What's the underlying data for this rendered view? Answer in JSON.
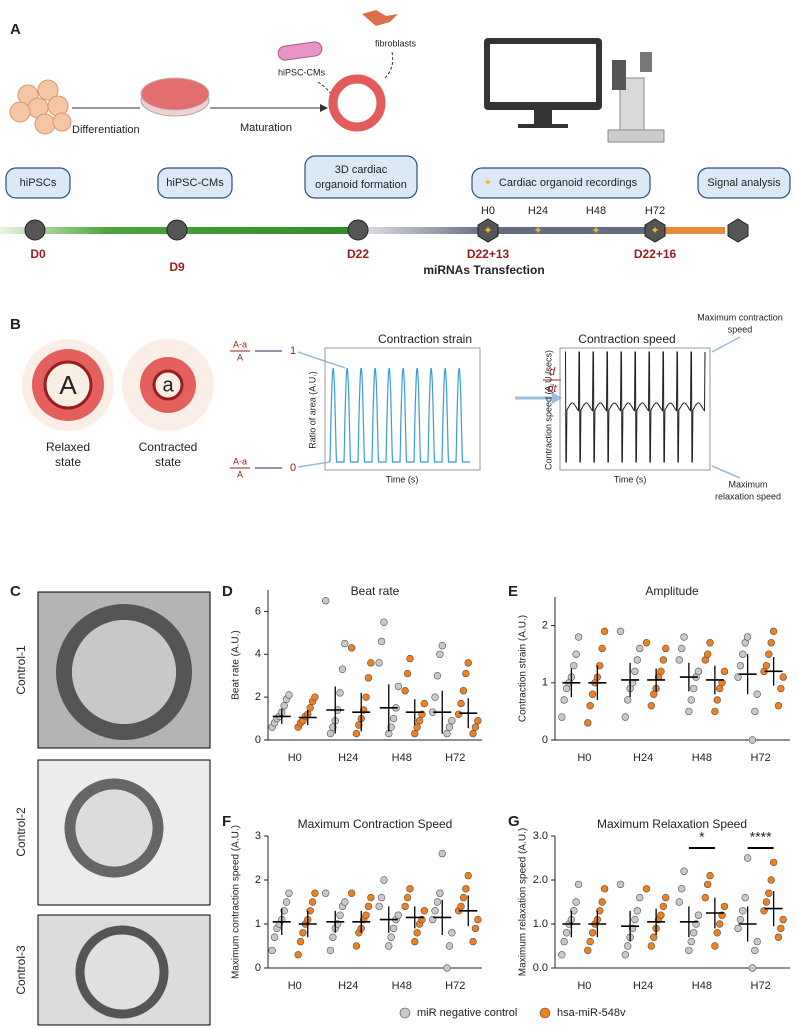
{
  "panel_a": {
    "label": "A",
    "differentiation": "Differentiation",
    "maturation": "Maturation",
    "hipsc_cms_cell": "hiPSC-CMs",
    "fibroblasts": "fibroblasts",
    "boxes": [
      "hiPSCs",
      "hiPSC-CMs",
      [
        "3D cardiac",
        "organoid formation"
      ],
      "Cardiac organoid recordings",
      "Signal analysis"
    ],
    "hours": [
      "H0",
      "H24",
      "H48",
      "H72"
    ],
    "days": [
      "D0",
      "D9",
      "D22",
      "D22+13",
      "D22+16"
    ],
    "transfection": "miRNAs Transfection"
  },
  "panel_b": {
    "label": "B",
    "relaxed_letter": "A",
    "contracted_letter": "a",
    "relaxed": [
      "Relaxed",
      "state"
    ],
    "contracted": [
      "Contracted",
      "state"
    ],
    "fraction_top": [
      "A-a",
      "A"
    ],
    "fraction_bottom": [
      "A-a",
      "A"
    ],
    "one": "1",
    "zero": "0",
    "derivative": [
      "d",
      "dt"
    ],
    "strain_title": "Contraction strain",
    "strain_ylabel": "Ratio of area (A.U.)",
    "strain_xlabel": "Time (s)",
    "speed_title": "Contraction speed",
    "speed_ylabel": "Contraction speed (A.U./secs)",
    "speed_xlabel": "Time (s)",
    "max_contraction": [
      "Maximum contraction",
      "speed"
    ],
    "max_relaxation": [
      "Maximum",
      "relaxation speed"
    ]
  },
  "panel_c": {
    "label": "C",
    "images": [
      "Control-1",
      "Control-2",
      "Control-3"
    ]
  },
  "chart_data": [
    {
      "type": "scatter",
      "panel_label": "D",
      "title": "Beat rate",
      "y_label": "Beat rate (A.U.)",
      "categories": [
        "H0",
        "H24",
        "H48",
        "H72"
      ],
      "ylim": [
        0,
        7
      ],
      "yticks": [
        0,
        2,
        4,
        6
      ],
      "series": [
        {
          "name": "miR negative control",
          "color": "#c8c8c8",
          "values": [
            [
              0.6,
              0.8,
              1.0,
              1.1,
              1.3,
              1.6,
              1.9,
              2.1
            ],
            [
              0.3,
              0.6,
              0.9,
              1.4,
              2.2,
              3.3,
              4.5,
              6.5
            ],
            [
              0.3,
              0.6,
              1.0,
              1.5,
              2.5,
              3.6,
              4.6,
              5.5
            ],
            [
              0.3,
              0.6,
              0.9,
              1.3,
              2.0,
              3.0,
              4.0,
              4.4
            ]
          ],
          "mean": [
            1.1,
            1.4,
            1.5,
            1.3
          ],
          "sd": [
            0.35,
            1.1,
            1.1,
            1.0
          ]
        },
        {
          "name": "hsa-miR-548v",
          "color": "#f07f1e",
          "values": [
            [
              0.6,
              0.8,
              0.9,
              1.1,
              1.2,
              1.5,
              1.8,
              2.0
            ],
            [
              0.3,
              0.7,
              1.0,
              1.4,
              2.0,
              2.9,
              3.6,
              4.3
            ],
            [
              0.3,
              0.6,
              0.9,
              1.2,
              1.7,
              2.3,
              3.1,
              3.8
            ],
            [
              0.3,
              0.6,
              0.9,
              1.2,
              1.7,
              2.3,
              3.1,
              3.6
            ]
          ],
          "mean": [
            1.05,
            1.3,
            1.3,
            1.25
          ],
          "sd": [
            0.35,
            0.9,
            0.6,
            0.7
          ]
        }
      ]
    },
    {
      "type": "scatter",
      "panel_label": "E",
      "title": "Amplitude",
      "y_label": "Contraction strain (A.U.)",
      "categories": [
        "H0",
        "H24",
        "H48",
        "H72"
      ],
      "ylim": [
        0,
        2.5
      ],
      "yticks": [
        0,
        1,
        2
      ],
      "series": [
        {
          "name": "miR negative control",
          "color": "#c8c8c8",
          "values": [
            [
              0.4,
              0.7,
              0.9,
              1.0,
              1.1,
              1.3,
              1.5,
              1.8
            ],
            [
              0.4,
              0.7,
              0.9,
              1.0,
              1.2,
              1.4,
              1.6,
              1.9
            ],
            [
              0.5,
              0.7,
              0.9,
              1.1,
              1.2,
              1.4,
              1.6,
              1.8
            ],
            [
              0.0,
              0.5,
              0.8,
              1.1,
              1.3,
              1.5,
              1.7,
              1.8
            ]
          ],
          "mean": [
            1.0,
            1.05,
            1.1,
            1.15
          ],
          "sd": [
            0.25,
            0.3,
            0.25,
            0.35
          ]
        },
        {
          "name": "hsa-miR-548v",
          "color": "#f07f1e",
          "values": [
            [
              0.3,
              0.6,
              0.8,
              1.0,
              1.1,
              1.3,
              1.6,
              1.9
            ],
            [
              0.6,
              0.8,
              0.9,
              1.1,
              1.2,
              1.4,
              1.6,
              1.7
            ],
            [
              0.5,
              0.7,
              0.9,
              1.0,
              1.2,
              1.4,
              1.5,
              1.7
            ],
            [
              0.6,
              0.9,
              1.1,
              1.2,
              1.3,
              1.5,
              1.7,
              1.9
            ]
          ],
          "mean": [
            1.0,
            1.05,
            1.05,
            1.2
          ],
          "sd": [
            0.3,
            0.2,
            0.25,
            0.25
          ]
        }
      ]
    },
    {
      "type": "scatter",
      "panel_label": "F",
      "title": "Maximum Contraction Speed",
      "y_label": "Maximum contraction speed (A.U.)",
      "categories": [
        "H0",
        "H24",
        "H48",
        "H72"
      ],
      "ylim": [
        0,
        3
      ],
      "yticks": [
        0,
        1,
        2,
        3
      ],
      "series": [
        {
          "name": "miR negative control",
          "color": "#c8c8c8",
          "values": [
            [
              0.4,
              0.7,
              0.9,
              1.0,
              1.1,
              1.3,
              1.5,
              1.7
            ],
            [
              0.4,
              0.7,
              0.9,
              1.0,
              1.2,
              1.4,
              1.5,
              1.7
            ],
            [
              0.5,
              0.7,
              0.9,
              1.1,
              1.2,
              1.4,
              1.6,
              2.0
            ],
            [
              0.0,
              0.5,
              0.8,
              1.1,
              1.3,
              1.5,
              1.7,
              2.6
            ]
          ],
          "mean": [
            1.05,
            1.05,
            1.1,
            1.15
          ],
          "sd": [
            0.3,
            0.25,
            0.3,
            0.4
          ]
        },
        {
          "name": "hsa-miR-548v",
          "color": "#f07f1e",
          "values": [
            [
              0.3,
              0.6,
              0.8,
              1.0,
              1.1,
              1.3,
              1.5,
              1.7
            ],
            [
              0.5,
              0.8,
              0.9,
              1.1,
              1.2,
              1.4,
              1.6,
              1.7
            ],
            [
              0.6,
              0.8,
              1.0,
              1.1,
              1.3,
              1.4,
              1.6,
              1.8
            ],
            [
              0.6,
              0.9,
              1.1,
              1.3,
              1.4,
              1.6,
              1.8,
              2.1
            ]
          ],
          "mean": [
            1.0,
            1.05,
            1.15,
            1.3
          ],
          "sd": [
            0.3,
            0.25,
            0.25,
            0.35
          ]
        }
      ]
    },
    {
      "type": "scatter",
      "panel_label": "G",
      "title": "Maximum Relaxation Speed",
      "y_label": "Maximum relaxation speed (A.U.)",
      "categories": [
        "H0",
        "H24",
        "H48",
        "H72"
      ],
      "ylim": [
        0,
        3
      ],
      "yticks": [
        {
          "value": 0,
          "label": "0.0"
        },
        {
          "value": 1,
          "label": "1.0"
        },
        {
          "value": 2,
          "label": "2.0"
        },
        {
          "value": 3,
          "label": "3.0"
        }
      ],
      "significance": [
        null,
        null,
        "*",
        "****"
      ],
      "series": [
        {
          "name": "miR negative control",
          "color": "#c8c8c8",
          "values": [
            [
              0.3,
              0.6,
              0.8,
              1.0,
              1.1,
              1.3,
              1.5,
              1.9
            ],
            [
              0.3,
              0.5,
              0.7,
              0.9,
              1.1,
              1.3,
              1.6,
              1.9
            ],
            [
              0.4,
              0.6,
              0.8,
              1.0,
              1.2,
              1.5,
              1.8,
              2.2
            ],
            [
              0.0,
              0.4,
              0.6,
              0.9,
              1.1,
              1.3,
              1.6,
              2.5
            ]
          ],
          "mean": [
            1.0,
            0.95,
            1.05,
            1.0
          ],
          "sd": [
            0.3,
            0.35,
            0.35,
            0.4
          ]
        },
        {
          "name": "hsa-miR-548v",
          "color": "#f07f1e",
          "values": [
            [
              0.4,
              0.6,
              0.8,
              1.0,
              1.1,
              1.3,
              1.5,
              1.8
            ],
            [
              0.5,
              0.7,
              0.9,
              1.1,
              1.2,
              1.4,
              1.6,
              1.8
            ],
            [
              0.5,
              0.8,
              1.0,
              1.2,
              1.4,
              1.6,
              1.9,
              2.1
            ],
            [
              0.7,
              0.9,
              1.1,
              1.3,
              1.5,
              1.7,
              2.0,
              2.4
            ]
          ],
          "mean": [
            1.0,
            1.05,
            1.25,
            1.35
          ],
          "sd": [
            0.3,
            0.3,
            0.35,
            0.4
          ]
        }
      ]
    }
  ]
}
